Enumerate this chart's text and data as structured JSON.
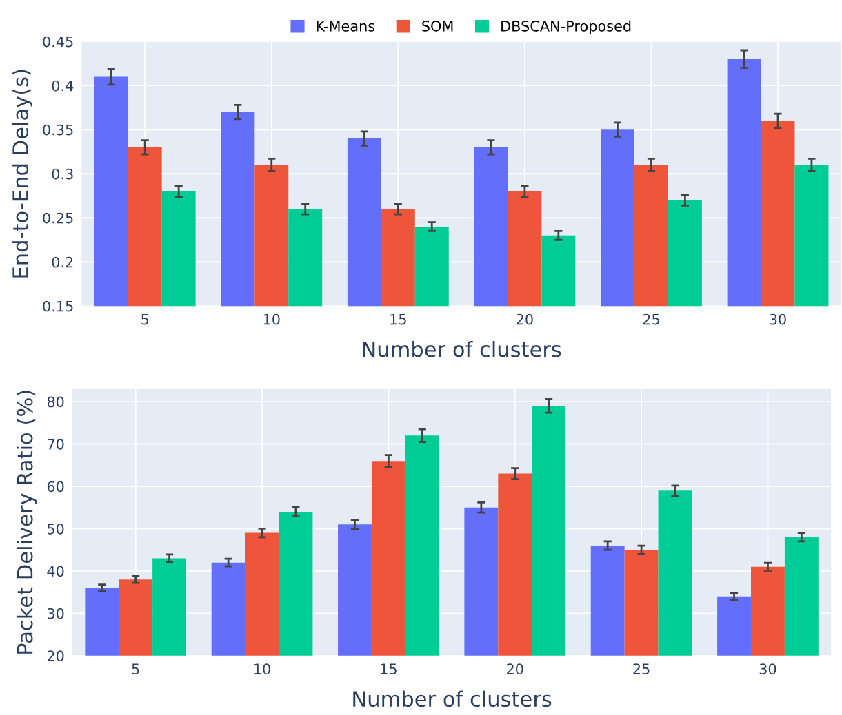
{
  "chart_data": [
    {
      "type": "bar",
      "xlabel": "Number of clusters",
      "ylabel": "End-to-End Delay(s)",
      "categories": [
        "5",
        "10",
        "15",
        "20",
        "25",
        "30"
      ],
      "series": [
        {
          "name": "K-Means",
          "color": "#636efa",
          "values": [
            0.41,
            0.37,
            0.34,
            0.33,
            0.35,
            0.43
          ],
          "errors": [
            0.009,
            0.008,
            0.008,
            0.008,
            0.008,
            0.01
          ]
        },
        {
          "name": "SOM",
          "color": "#ef553b",
          "values": [
            0.33,
            0.31,
            0.26,
            0.28,
            0.31,
            0.36
          ],
          "errors": [
            0.008,
            0.007,
            0.006,
            0.006,
            0.007,
            0.008
          ]
        },
        {
          "name": "DBSCAN-Proposed",
          "color": "#00cc96",
          "values": [
            0.28,
            0.26,
            0.24,
            0.23,
            0.27,
            0.31
          ],
          "errors": [
            0.006,
            0.006,
            0.005,
            0.005,
            0.006,
            0.007
          ]
        }
      ],
      "ylim": [
        0.15,
        0.45
      ],
      "yticks": [
        0.15,
        0.2,
        0.25,
        0.3,
        0.35,
        0.4,
        0.45
      ],
      "grid": true,
      "legend": "top"
    },
    {
      "type": "bar",
      "xlabel": "Number of clusters",
      "ylabel": "Packet Delivery Ratio (%)",
      "categories": [
        "5",
        "10",
        "15",
        "20",
        "25",
        "30"
      ],
      "series": [
        {
          "color": "#636efa",
          "values": [
            36,
            42,
            51,
            55,
            46,
            34
          ],
          "errors": [
            0.8,
            0.9,
            1.1,
            1.2,
            1.0,
            0.8
          ]
        },
        {
          "color": "#ef553b",
          "values": [
            38,
            49,
            66,
            63,
            45,
            41
          ],
          "errors": [
            0.8,
            1.0,
            1.4,
            1.3,
            1.0,
            0.9
          ]
        },
        {
          "color": "#00cc96",
          "values": [
            43,
            54,
            72,
            79,
            59,
            48
          ],
          "errors": [
            0.9,
            1.1,
            1.5,
            1.6,
            1.2,
            1.0
          ]
        }
      ],
      "ylim": [
        20,
        83
      ],
      "yticks": [
        20,
        30,
        40,
        50,
        60,
        70,
        80
      ],
      "grid": true
    }
  ]
}
